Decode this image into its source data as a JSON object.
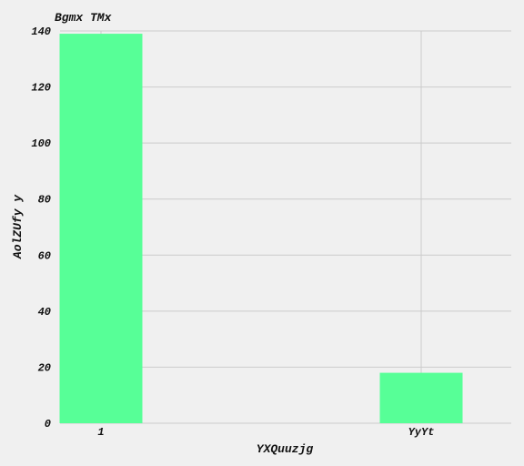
{
  "chart_data": {
    "type": "bar",
    "title": "Bgmx TMx",
    "xlabel": "YXQuuzjg",
    "ylabel": "AolZUfy y",
    "categories": [
      "1",
      "YyYt"
    ],
    "values": [
      139,
      18
    ],
    "ylim": [
      0,
      140
    ],
    "yticks": [
      0,
      20,
      40,
      60,
      80,
      100,
      120,
      140
    ],
    "grid": true,
    "colors": {
      "bar": "#57ff97",
      "grid": "#cbcbcb",
      "background": "#f0f0f0",
      "text": "#111111"
    }
  }
}
